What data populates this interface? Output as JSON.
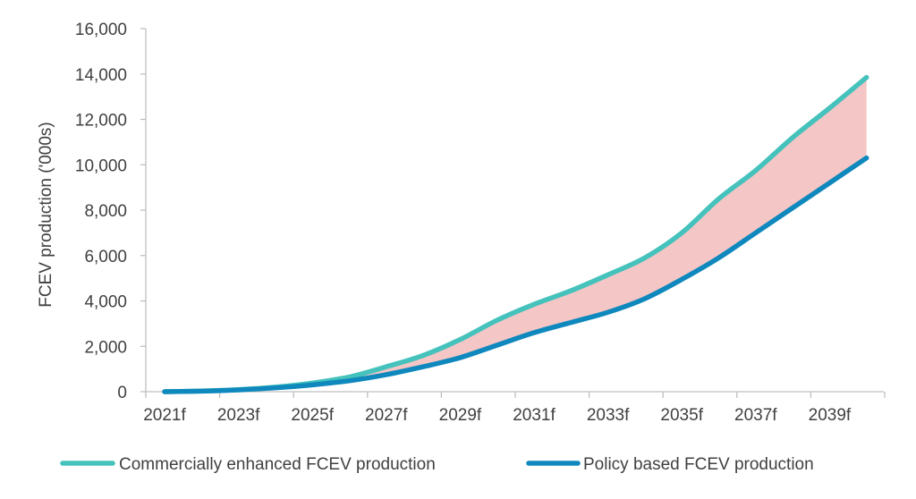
{
  "chart_data": {
    "type": "line",
    "title": "",
    "ylabel": "FCEV production ('000s)",
    "xlabel": "",
    "ylim": [
      0,
      16000
    ],
    "yticks": [
      "0",
      "2,000",
      "4,000",
      "6,000",
      "8,000",
      "10,000",
      "12,000",
      "14,000",
      "16,000"
    ],
    "ytick_values": [
      0,
      2000,
      4000,
      6000,
      8000,
      10000,
      12000,
      14000,
      16000
    ],
    "x": [
      "2021f",
      "2022f",
      "2023f",
      "2024f",
      "2025f",
      "2026f",
      "2027f",
      "2028f",
      "2029f",
      "2030f",
      "2031f",
      "2032f",
      "2033f",
      "2034f",
      "2035f",
      "2036f",
      "2037f",
      "2038f",
      "2039f",
      "2040f"
    ],
    "xtick_labels": [
      "2021f",
      "2023f",
      "2025f",
      "2027f",
      "2029f",
      "2031f",
      "2033f",
      "2035f",
      "2037f",
      "2039f"
    ],
    "grid": false,
    "legend_position": "bottom",
    "shaded_band_between_series": true,
    "series": [
      {
        "name": "Commercially enhanced FCEV production",
        "color": "#45C2BC",
        "values": [
          0,
          30,
          90,
          200,
          380,
          650,
          1100,
          1600,
          2300,
          3150,
          3850,
          4450,
          5150,
          5900,
          7000,
          8500,
          9750,
          11200,
          12500,
          13850
        ]
      },
      {
        "name": "Policy based FCEV production",
        "color": "#0E88BD",
        "values": [
          0,
          25,
          80,
          170,
          300,
          480,
          750,
          1100,
          1500,
          2050,
          2600,
          3050,
          3500,
          4100,
          4950,
          5900,
          7000,
          8100,
          9200,
          10300
        ]
      }
    ],
    "band_color": "#F4C6C6"
  }
}
